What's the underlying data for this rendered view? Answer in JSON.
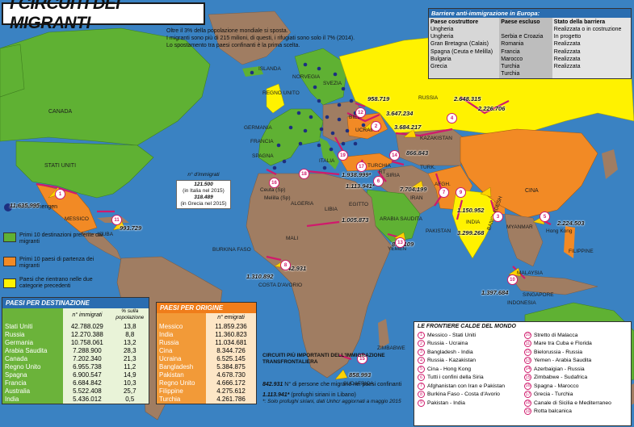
{
  "title": "I CIRCUITI DEI MIGRANTI",
  "subtitle": [
    "Oltre il 3% della popolazione mondiale si sposta.",
    "I migranti sono più di 215 milioni, di questi, i rifugiati sono solo il 7% (2014).",
    "Lo spostamento tra paesi confinanti è la prima scelta."
  ],
  "barrier": {
    "header": "Barriere anti-immigrazione in Europa:",
    "col1_head": "Paese costruttore",
    "col2_head": "Paese escluso",
    "col3_head": "Stato della barriera",
    "builders": [
      "Ungheria",
      "Ungheria",
      "Gran Bretagna (Calais)",
      "Spagna (Ceuta e Melilla)",
      "Bulgaria",
      "Grecia"
    ],
    "excluded": [
      "Serbia e Croazia",
      "Romania",
      "Francia",
      "Marocco",
      "Turchia",
      "Turchia"
    ],
    "status": [
      "Realizzata o in costruzione",
      "In progetto",
      "Realizzata",
      "Realizzata",
      "Realizzata",
      "Realizzata"
    ]
  },
  "legend": {
    "schengen": "Paesi Schengen",
    "green": "Primi 10 destinazioni preferite dai migranti",
    "orange": "Primi 10 paesi di partenza dei migranti",
    "yellow": "Paesi che rientrano nelle due categorie precedenti",
    "colors": {
      "green": "#5fb133",
      "orange": "#f28a25",
      "yellow": "#fff200",
      "brown": "#a07d62",
      "sea": "#3a82c2"
    }
  },
  "immigrati_box": {
    "label": "n° d'immigrati",
    "italy_value": "121.500",
    "italy_note": "(in Italia nel 2015)",
    "greece_value": "318.489",
    "greece_note": "(in Grecia nel 2015)"
  },
  "dest_table": {
    "title": "PAESI PER DESTINAZIONE",
    "h1": "n° immigrati",
    "h2": "% sulla popolazione",
    "rows": [
      [
        "Stati Uniti",
        "42.788.029",
        "13,8"
      ],
      [
        "Russia",
        "12.270.388",
        "8,8"
      ],
      [
        "Germania",
        "10.758.061",
        "13,2"
      ],
      [
        "Arabia Saudita",
        "7.288.900",
        "28,3"
      ],
      [
        "Canada",
        "7.202.340",
        "21,3"
      ],
      [
        "Regno Unito",
        "6.955.738",
        "11,2"
      ],
      [
        "Spagna",
        "6.900.547",
        "14,9"
      ],
      [
        "Francia",
        "6.684.842",
        "10,3"
      ],
      [
        "Australia",
        "5.522.408",
        "25,7"
      ],
      [
        "India",
        "5.436.012",
        "0,5"
      ]
    ]
  },
  "orig_table": {
    "title": "PAESI PER ORIGINE",
    "h1": "n° emigrati",
    "rows": [
      [
        "Messico",
        "11.859.236"
      ],
      [
        "India",
        "11.360.823"
      ],
      [
        "Russia",
        "11.034.681"
      ],
      [
        "Cina",
        "8.344.726"
      ],
      [
        "Ucraina",
        "6.525.145"
      ],
      [
        "Bangladesh",
        "5.384.875"
      ],
      [
        "Pakistan",
        "4.678.730"
      ],
      [
        "Regno Unito",
        "4.666.172"
      ],
      [
        "Filippine",
        "4.275.612"
      ],
      [
        "Turchia",
        "4.261.786"
      ]
    ]
  },
  "circuits_note": {
    "title": "CIRCUITI PIÙ IMPORTANTI DELL'IMMIGRAZIONE TRANSFRONTALIERA",
    "example_value": "842.931",
    "example_text": "N° di persone che migrano nei paesi confinanti",
    "lebanon_value": "1.113.941*",
    "lebanon_text": "(profughi siriani in Libano)",
    "footnote": "*: Solo profughi siriani, dati Unhcr aggiornati a maggio 2015"
  },
  "borders": {
    "title": "LE FRONTIERE CALDE DEL MONDO",
    "left": [
      [
        "1",
        "Messico - Stati Uniti"
      ],
      [
        "2",
        "Russia - Ucraina"
      ],
      [
        "3",
        "Bangladesh - India"
      ],
      [
        "4",
        "Russia - Kazakistan"
      ],
      [
        "5",
        "Cina - Hong Kong"
      ],
      [
        "6",
        "Tutti i confini della Siria"
      ],
      [
        "7",
        "Afghanistan con Iran e Pakistan"
      ],
      [
        "8",
        "Burkina Faso - Costa d'Avorio"
      ],
      [
        "9",
        "Pakistan - India"
      ]
    ],
    "right": [
      [
        "10",
        "Stretto di Malacca"
      ],
      [
        "11",
        "Mare tra Cuba e Florida"
      ],
      [
        "12",
        "Bielorussia - Russia"
      ],
      [
        "13",
        "Yemen - Arabia Saudita"
      ],
      [
        "14",
        "Azerbaigian - Russia"
      ],
      [
        "15",
        "Zimbabwe - Sudafrica"
      ],
      [
        "16",
        "Spagna - Marocco"
      ],
      [
        "17",
        "Grecia - Turchia"
      ],
      [
        "18",
        "Canale di Sicilia e Mediterraneo"
      ],
      [
        "19",
        "Rotta balcanica"
      ]
    ]
  },
  "map_labels": {
    "canada": "CANADA",
    "usa": "STATI UNITI",
    "mexico": "MESSICO",
    "cuba": "CUBA",
    "islanda": "ISLANDA",
    "norvegia": "NORVEGIA",
    "svezia": "SVEZIA",
    "uk": "REGNO UNITO",
    "germania": "GERMANIA",
    "francia": "FRANCIA",
    "spagna": "SPAGNA",
    "italia": "ITALIA",
    "ucraina": "UCRAINA",
    "bielorussia": "BIEL.",
    "russia": "RUSSIA",
    "kazakistan": "KAZAKISTAN",
    "turchia": "TURCHIA",
    "iran": "IRAN",
    "afgh": "AFGH.",
    "pakistan": "PAKISTAN",
    "india": "INDIA",
    "cina": "CINA",
    "myanmar": "MYANMAR",
    "bangladesh": "BANGLADESH",
    "hongkong": "Hong Kong",
    "filippine": "FILIPPINE",
    "malaysia": "MALAYSIA",
    "singapore": "SINGAPORE",
    "indonesia": "INDONESIA",
    "arabia": "ARABIA SAUDITA",
    "yemen": "YEMEN",
    "egitto": "EGITTO",
    "libia": "LIBIA",
    "algeria": "ALGERIA",
    "mali": "MALI",
    "burkina": "BURKINA FASO",
    "costa": "COSTA D'AVORIO",
    "zimbabwe": "ZIMBABWE",
    "sudafrica": "SUDAFRICA",
    "ceuta": "Ceuta (Sp)",
    "melilla": "Melilla (Sp)",
    "siria": "SIRIA",
    "rt": "RT",
    "turk": "TURK."
  },
  "flow_values": {
    "usa_mex": "11.635.995",
    "cuba": "993.729",
    "rus_east": "958.719",
    "rus_kaz1": "3.647.234",
    "rus_kaz2": "3.684.217",
    "kaz_a": "2.648.315",
    "kaz_b": "2.226.706",
    "azer": "866.843",
    "turchia": "1.938.999*",
    "libano": "1.113.941*",
    "iran": "7.704.199",
    "ind_pak": "1.150.952",
    "ind_bang": "3.299.268",
    "hongkong": "2.224.503",
    "libia": "1.005.873",
    "yemen": "894.109",
    "costa": "1.310.892",
    "costa2": "842.931",
    "malacca": "1.397.684",
    "sudafrica": "858.993"
  }
}
